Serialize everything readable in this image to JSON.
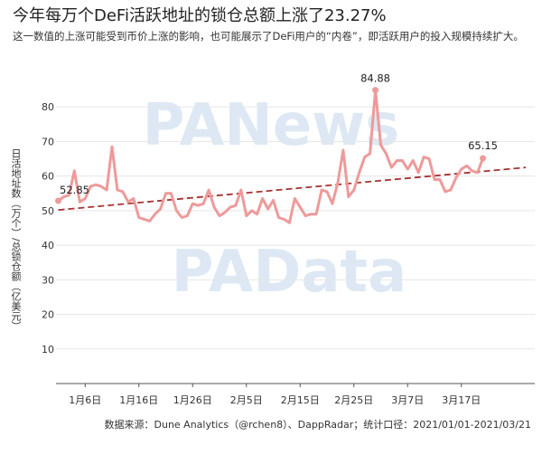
{
  "title": "今年每万个DeFi活跃地址的锁仓总额上涨了23.27%",
  "subtitle": "这一数值的上涨可能受到币价上涨的影响，也可能展示了DeFi用户的“内卷”，即活跃用户的投入规模持续扩大。",
  "source": "数据来源：Dune Analytics（@rchen8）、DappRadar；统计口径：2021/01/01-2021/03/21",
  "watermarks": [
    "PANews",
    "PAData"
  ],
  "colors": {
    "series": "#ee9a9a",
    "trend": "#a83232",
    "axis": "#555555",
    "grid": "#e6e6e6",
    "watermark": "#dde8f4"
  },
  "chart_data": {
    "type": "line",
    "ylabel": "日活地址数（万个）/总锁仓额（亿美元）",
    "ylim": [
      0,
      90
    ],
    "yticks": [
      10,
      20,
      30,
      40,
      50,
      60,
      70,
      80
    ],
    "xlim": [
      "2021-01-01",
      "2021-03-21"
    ],
    "xticks": [
      {
        "date": "2021-01-06",
        "label": "1月6日"
      },
      {
        "date": "2021-01-16",
        "label": "1月16日"
      },
      {
        "date": "2021-01-26",
        "label": "1月26日"
      },
      {
        "date": "2021-02-05",
        "label": "2月5日"
      },
      {
        "date": "2021-02-15",
        "label": "2月15日"
      },
      {
        "date": "2021-02-25",
        "label": "2月25日"
      },
      {
        "date": "2021-03-07",
        "label": "3月7日"
      },
      {
        "date": "2021-03-17",
        "label": "3月17日"
      }
    ],
    "grid": true,
    "series": [
      {
        "values": [
          [
            "2021-01-01",
            52.85
          ],
          [
            "2021-01-02",
            54.0
          ],
          [
            "2021-01-03",
            54.5
          ],
          [
            "2021-01-04",
            61.5
          ],
          [
            "2021-01-05",
            52.5
          ],
          [
            "2021-01-06",
            53.5
          ],
          [
            "2021-01-07",
            57.0
          ],
          [
            "2021-01-08",
            57.5
          ],
          [
            "2021-01-09",
            57.0
          ],
          [
            "2021-01-10",
            56.0
          ],
          [
            "2021-01-11",
            68.5
          ],
          [
            "2021-01-12",
            56.0
          ],
          [
            "2021-01-13",
            55.5
          ],
          [
            "2021-01-14",
            52.5
          ],
          [
            "2021-01-15",
            53.5
          ],
          [
            "2021-01-16",
            48.0
          ],
          [
            "2021-01-17",
            47.5
          ],
          [
            "2021-01-18",
            47.0
          ],
          [
            "2021-01-19",
            49.0
          ],
          [
            "2021-01-20",
            50.5
          ],
          [
            "2021-01-21",
            55.0
          ],
          [
            "2021-01-22",
            55.0
          ],
          [
            "2021-01-23",
            50.0
          ],
          [
            "2021-01-24",
            48.0
          ],
          [
            "2021-01-25",
            48.5
          ],
          [
            "2021-01-26",
            52.0
          ],
          [
            "2021-01-27",
            51.5
          ],
          [
            "2021-01-28",
            52.0
          ],
          [
            "2021-01-29",
            56.0
          ],
          [
            "2021-01-30",
            51.0
          ],
          [
            "2021-01-31",
            48.5
          ],
          [
            "2021-02-01",
            49.5
          ],
          [
            "2021-02-02",
            51.0
          ],
          [
            "2021-02-03",
            51.5
          ],
          [
            "2021-02-04",
            56.0
          ],
          [
            "2021-02-05",
            48.5
          ],
          [
            "2021-02-06",
            50.0
          ],
          [
            "2021-02-07",
            49.0
          ],
          [
            "2021-02-08",
            53.5
          ],
          [
            "2021-02-09",
            50.5
          ],
          [
            "2021-02-10",
            53.0
          ],
          [
            "2021-02-11",
            48.0
          ],
          [
            "2021-02-12",
            47.5
          ],
          [
            "2021-02-13",
            46.5
          ],
          [
            "2021-02-14",
            53.5
          ],
          [
            "2021-02-15",
            51.0
          ],
          [
            "2021-02-16",
            48.5
          ],
          [
            "2021-02-17",
            49.0
          ],
          [
            "2021-02-18",
            49.0
          ],
          [
            "2021-02-19",
            56.0
          ],
          [
            "2021-02-20",
            55.5
          ],
          [
            "2021-02-21",
            52.0
          ],
          [
            "2021-02-22",
            58.0
          ],
          [
            "2021-02-23",
            67.5
          ],
          [
            "2021-02-24",
            54.0
          ],
          [
            "2021-02-25",
            56.0
          ],
          [
            "2021-02-26",
            61.0
          ],
          [
            "2021-02-27",
            65.5
          ],
          [
            "2021-02-28",
            66.5
          ],
          [
            "2021-03-01",
            84.88
          ],
          [
            "2021-03-02",
            69.0
          ],
          [
            "2021-03-03",
            66.5
          ],
          [
            "2021-03-04",
            62.5
          ],
          [
            "2021-03-05",
            64.5
          ],
          [
            "2021-03-06",
            64.5
          ],
          [
            "2021-03-07",
            62.0
          ],
          [
            "2021-03-08",
            64.5
          ],
          [
            "2021-03-09",
            61.0
          ],
          [
            "2021-03-10",
            65.5
          ],
          [
            "2021-03-11",
            65.0
          ],
          [
            "2021-03-12",
            59.0
          ],
          [
            "2021-03-13",
            59.0
          ],
          [
            "2021-03-14",
            55.5
          ],
          [
            "2021-03-15",
            56.0
          ],
          [
            "2021-03-16",
            59.5
          ],
          [
            "2021-03-17",
            62.0
          ],
          [
            "2021-03-18",
            63.0
          ],
          [
            "2021-03-19",
            61.5
          ],
          [
            "2021-03-20",
            61.0
          ],
          [
            "2021-03-21",
            65.15
          ]
        ]
      }
    ],
    "trendline": {
      "values": [
        [
          "2021-01-01",
          50.2
        ],
        [
          "2021-03-29",
          62.5
        ]
      ],
      "style": "dashed"
    },
    "annotations": [
      {
        "date": "2021-01-01",
        "value": 52.85,
        "label": "52.85"
      },
      {
        "date": "2021-03-01",
        "value": 84.88,
        "label": "84.88"
      },
      {
        "date": "2021-03-21",
        "value": 65.15,
        "label": "65.15"
      }
    ]
  }
}
